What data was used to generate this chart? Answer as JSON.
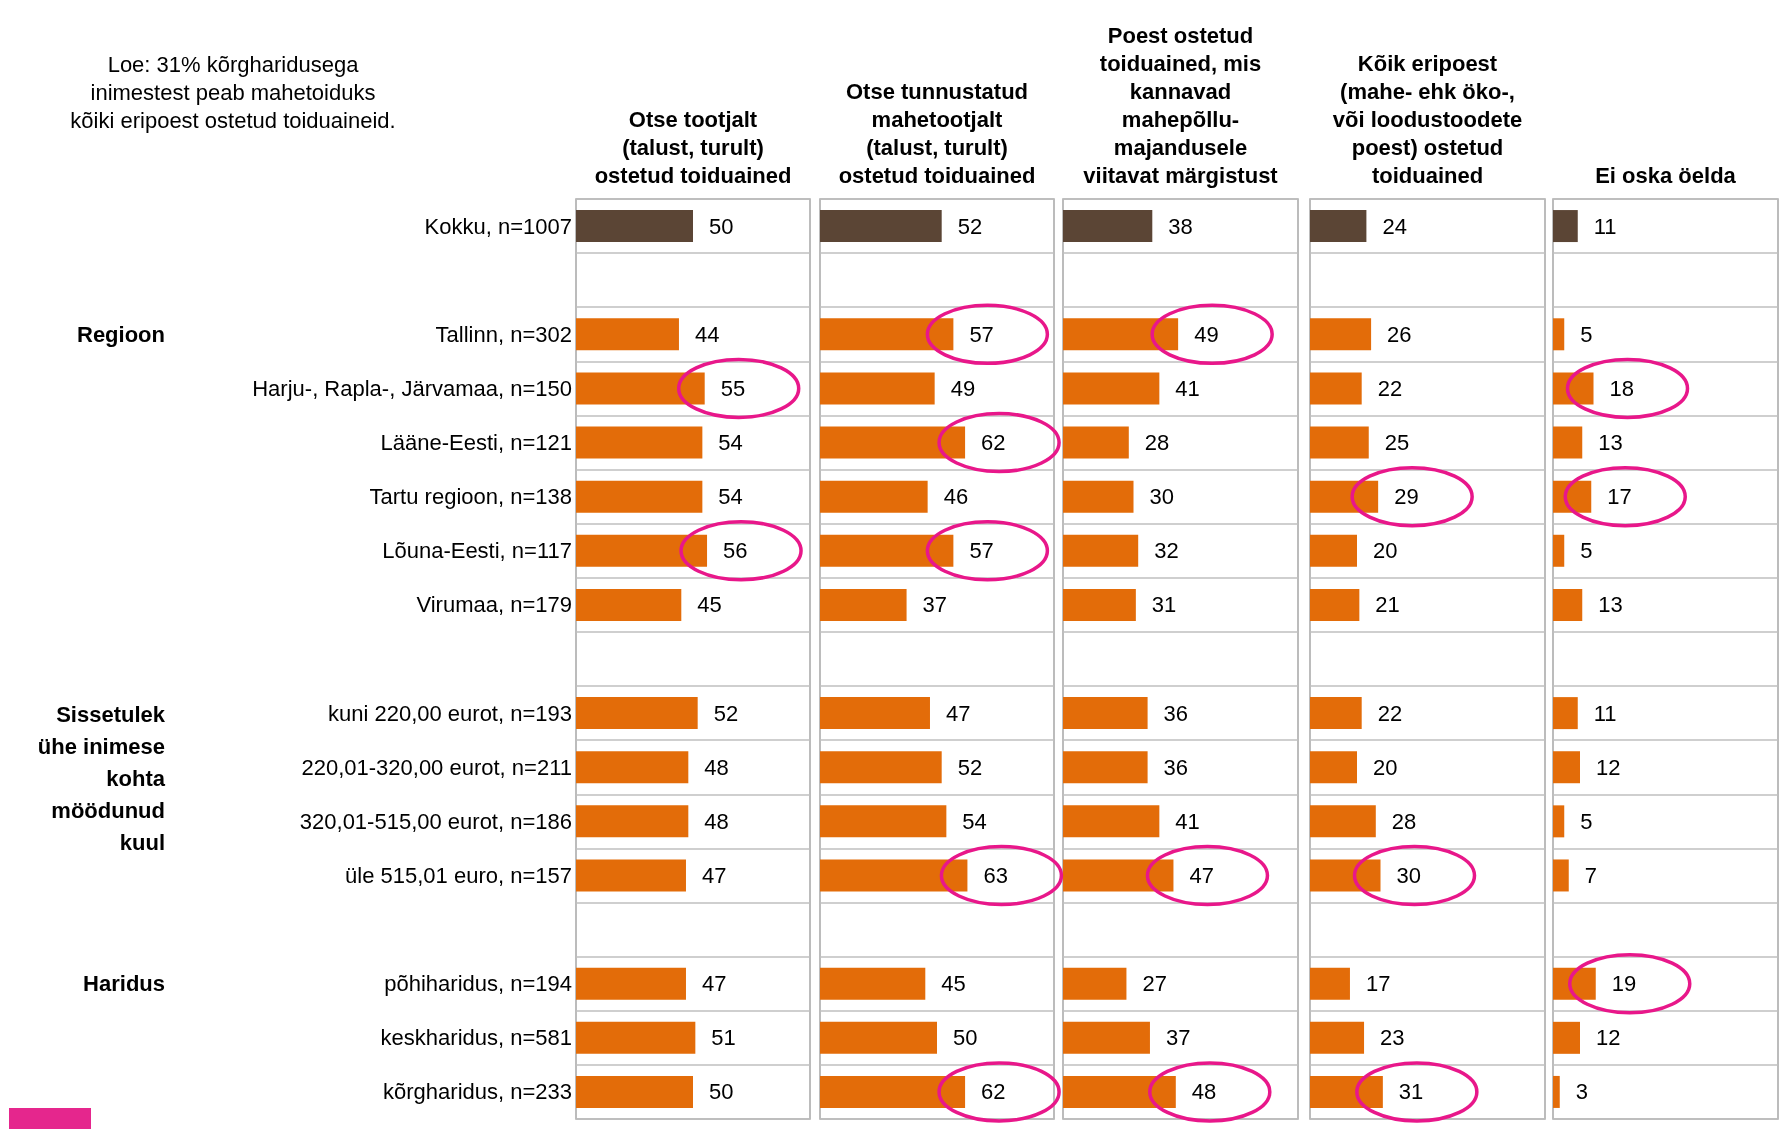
{
  "chart_data": [
    {
      "type": "bar",
      "orientation": "horizontal",
      "title": "Otse tootjalt\n(talust, turult)\nostetud toiduained",
      "categories": [
        "Kokku, n=1007",
        null,
        "Tallinn, n=302",
        "Harju-, Rapla-, Järvamaa, n=150",
        "Lääne-Eesti, n=121",
        "Tartu regioon, n=138",
        "Lõuna-Eesti, n=117",
        "Virumaa, n=179",
        null,
        "kuni 220,00 eurot, n=193",
        "220,01-320,00 eurot, n=211",
        "320,01-515,00 eurot, n=186",
        "üle 515,01 euro, n=157",
        null,
        "põhiharidus, n=194",
        "keskharidus, n=581",
        "kõrgharidus, n=233"
      ],
      "values": [
        50,
        null,
        44,
        55,
        54,
        54,
        56,
        45,
        null,
        52,
        48,
        48,
        47,
        null,
        47,
        51,
        50
      ],
      "colors": [
        "#5b4535",
        "#e36c09",
        "#e36c09",
        "#e36c09",
        "#e36c09",
        "#e36c09",
        "#e36c09",
        "#e36c09",
        "#e36c09",
        "#e36c09",
        "#e36c09",
        "#e36c09",
        "#e36c09",
        "#e36c09",
        "#e36c09",
        "#e36c09",
        "#e36c09"
      ],
      "xlim": [
        0,
        100
      ],
      "data_labels": true,
      "grid": "y",
      "tick_labels": "y",
      "annotations": [
        "Loe: 31% kõrgharidusega\ninimestest peab mahetoiduks\nkõiki eripoest ostetud toiduaineid.",
        "Regioon",
        "Sissetulek\nühe inimese\nkohta\nmöödunud\nkuul",
        "Haridus"
      ]
    },
    {
      "type": "bar",
      "orientation": "horizontal",
      "title": "Otse tunnustatud\nmahetootjalt\n(talust, turult)\nostetud toiduained",
      "values": [
        52,
        null,
        57,
        49,
        62,
        46,
        57,
        37,
        null,
        47,
        52,
        54,
        63,
        null,
        45,
        50,
        62
      ],
      "colors": [
        "#5b4535",
        "#e36c09",
        "#e36c09",
        "#e36c09",
        "#e36c09",
        "#e36c09",
        "#e36c09",
        "#e36c09",
        "#e36c09",
        "#e36c09",
        "#e36c09",
        "#e36c09",
        "#e36c09",
        "#e36c09",
        "#e36c09",
        "#e36c09",
        "#e36c09"
      ],
      "xlim": [
        0,
        100
      ],
      "data_labels": true,
      "grid": "y",
      "tick_labels": false
    },
    {
      "type": "bar",
      "orientation": "horizontal",
      "title": "Poest ostetud\ntoiduained, mis\nkannavad\nmahepõllu-\nmajandusele\nviitavat märgistust",
      "values": [
        38,
        null,
        49,
        41,
        28,
        30,
        32,
        31,
        null,
        36,
        36,
        41,
        47,
        null,
        27,
        37,
        48
      ],
      "colors": [
        "#5b4535",
        "#e36c09",
        "#e36c09",
        "#e36c09",
        "#e36c09",
        "#e36c09",
        "#e36c09",
        "#e36c09",
        "#e36c09",
        "#e36c09",
        "#e36c09",
        "#e36c09",
        "#e36c09",
        "#e36c09",
        "#e36c09",
        "#e36c09",
        "#e36c09"
      ],
      "xlim": [
        0,
        100
      ],
      "data_labels": true,
      "grid": "y",
      "tick_labels": false
    },
    {
      "type": "bar",
      "orientation": "horizontal",
      "title": "Kõik eripoest\n(mahe- ehk öko-,\nvõi loodustoodete\npoest) ostetud\ntoiduained",
      "values": [
        24,
        null,
        26,
        22,
        25,
        29,
        20,
        21,
        null,
        22,
        20,
        28,
        30,
        null,
        17,
        23,
        31
      ],
      "colors": [
        "#5b4535",
        "#e36c09",
        "#e36c09",
        "#e36c09",
        "#e36c09",
        "#e36c09",
        "#e36c09",
        "#e36c09",
        "#e36c09",
        "#e36c09",
        "#e36c09",
        "#e36c09",
        "#e36c09",
        "#e36c09",
        "#e36c09",
        "#e36c09",
        "#e36c09"
      ],
      "xlim": [
        0,
        100
      ],
      "data_labels": true,
      "grid": "y",
      "tick_labels": false
    },
    {
      "type": "bar",
      "orientation": "horizontal",
      "title": "Ei oska öelda",
      "values": [
        11,
        null,
        5,
        18,
        13,
        17,
        5,
        13,
        null,
        11,
        12,
        5,
        7,
        null,
        19,
        12,
        3
      ],
      "colors": [
        "#5b4535",
        "#e36c09",
        "#e36c09",
        "#e36c09",
        "#e36c09",
        "#e36c09",
        "#e36c09",
        "#e36c09",
        "#e36c09",
        "#e36c09",
        "#e36c09",
        "#e36c09",
        "#e36c09",
        "#e36c09",
        "#e36c09",
        "#e36c09",
        "#e36c09"
      ],
      "xlim": [
        0,
        100
      ],
      "data_labels": true,
      "grid": "y",
      "tick_labels": false
    }
  ]
}
